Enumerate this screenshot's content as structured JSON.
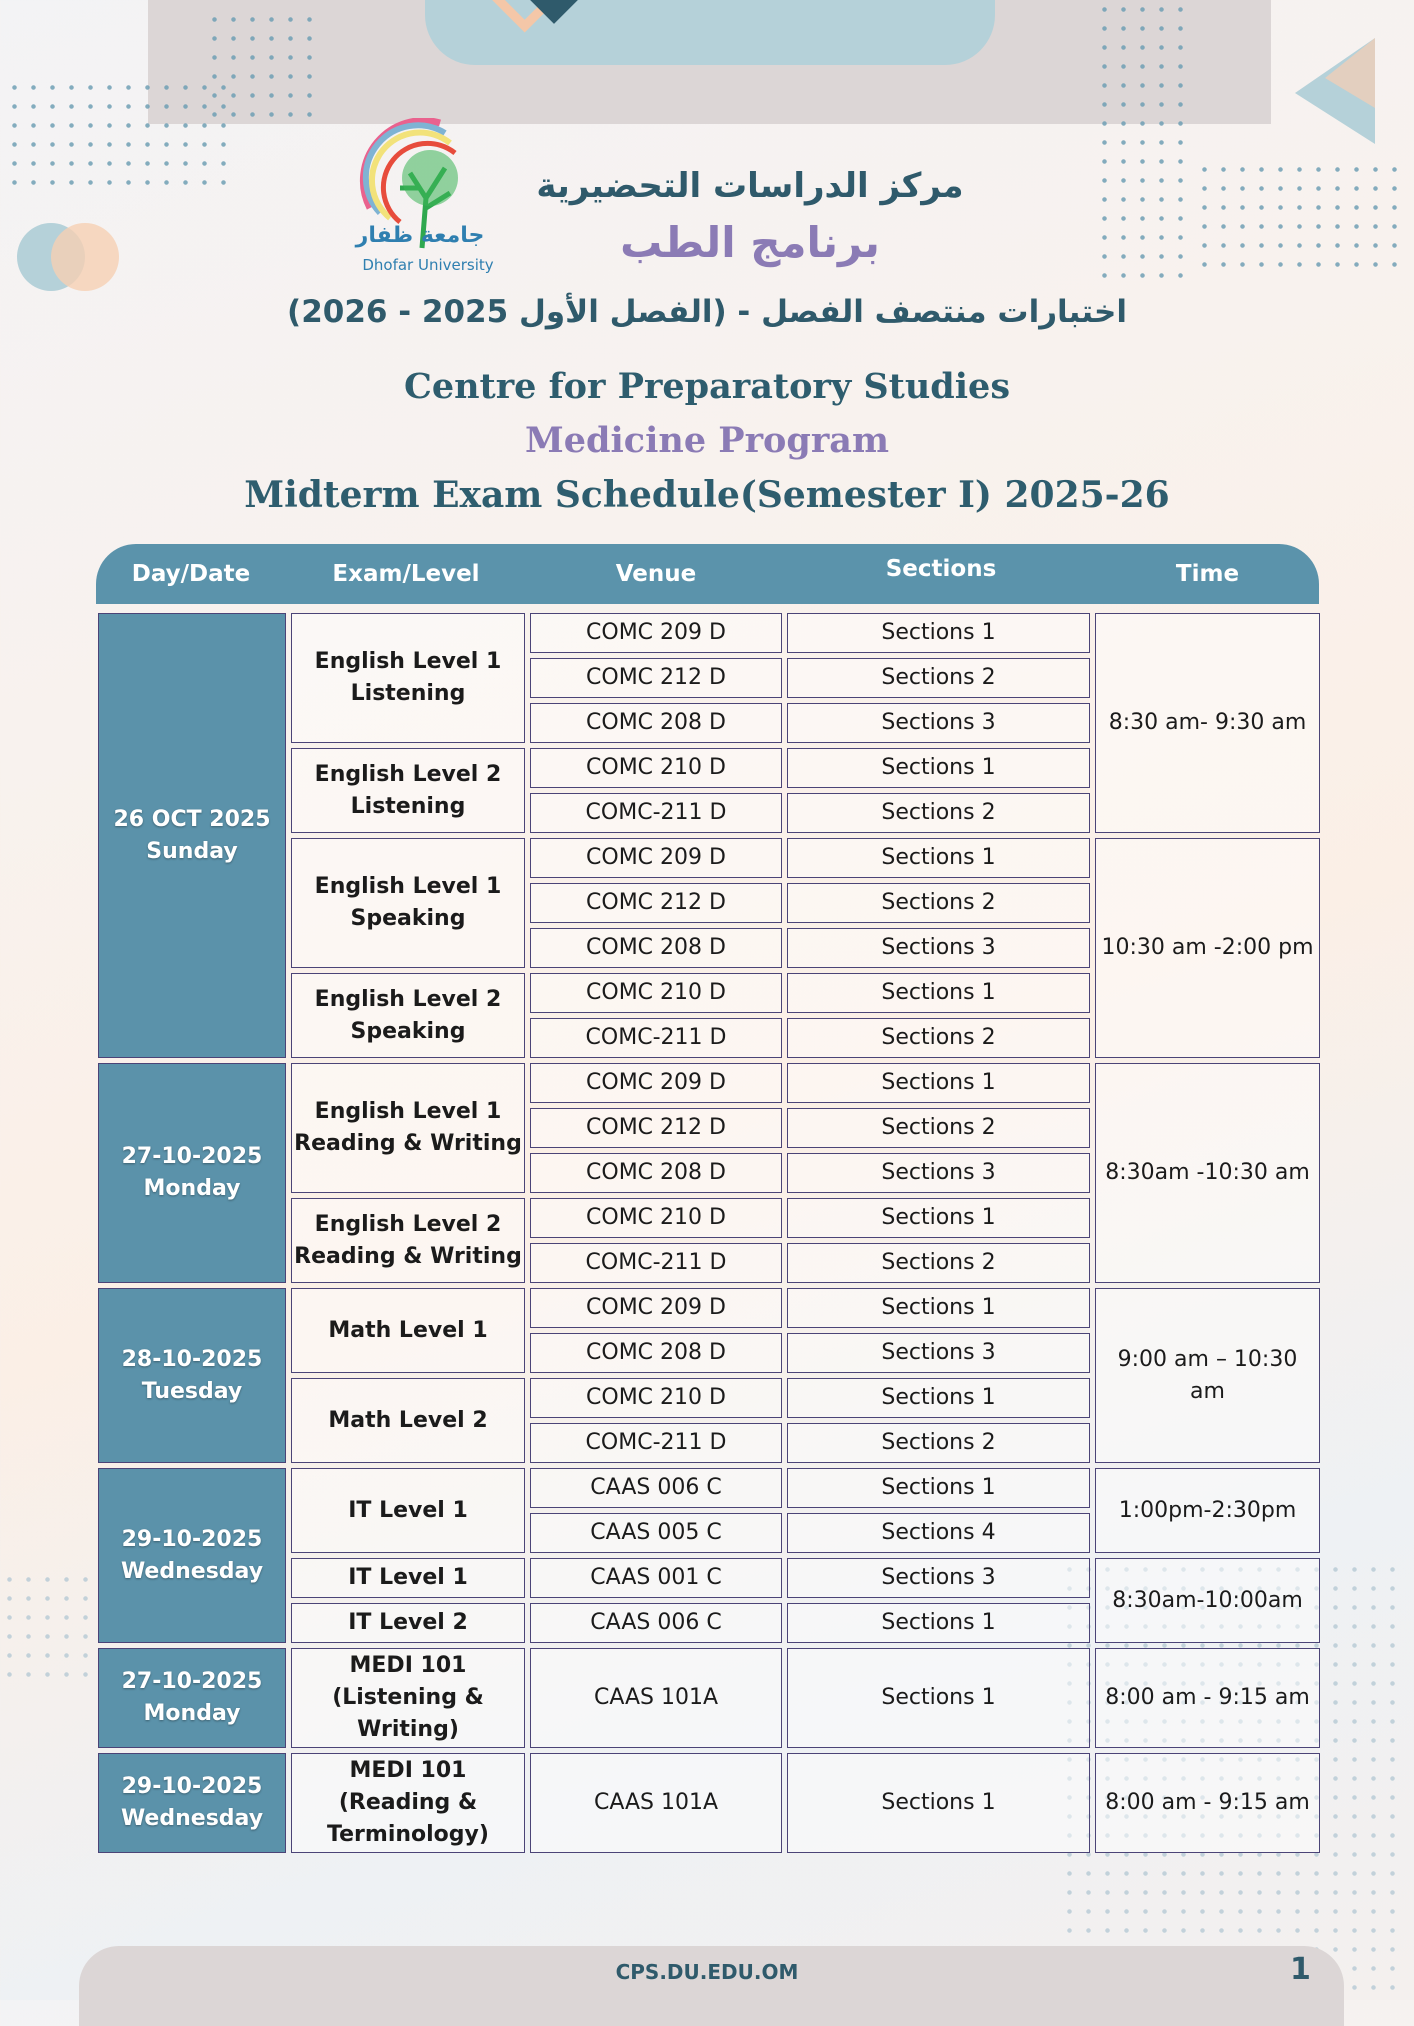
{
  "logo": {
    "arabic": "جامعة ظفار",
    "english": "Dhofar University"
  },
  "header": {
    "arabic_center": "مركز الدراسات التحضيرية",
    "arabic_program": "برنامج الطب",
    "arabic_title": "اختبارات منتصف الفصل - (الفصل الأول 2025 - 2026)",
    "centre": "Centre for Preparatory Studies",
    "program": "Medicine Program",
    "title": "Midterm Exam Schedule(Semester I)  2025-26"
  },
  "table": {
    "columns": [
      "Day/Date",
      "Exam/Level",
      "Venue",
      "Sections",
      "Time"
    ],
    "days": [
      {
        "date": "26 OCT 2025",
        "weekday": "Sunday",
        "exams": [
          {
            "name": "English Level 1 Listening",
            "rows": [
              {
                "venue": "COMC 209 D",
                "section": "Sections 1"
              },
              {
                "venue": "COMC 212 D",
                "section": "Sections 2"
              },
              {
                "venue": "COMC 208 D",
                "section": "Sections 3"
              }
            ],
            "time": "8:30 am- 9:30 am",
            "time_span": 5
          },
          {
            "name": "English Level 2 Listening",
            "rows": [
              {
                "venue": "COMC 210 D",
                "section": "Sections 1"
              },
              {
                "venue": "COMC-211 D",
                "section": "Sections 2"
              }
            ]
          },
          {
            "name": "English Level 1 Speaking",
            "rows": [
              {
                "venue": "COMC 209 D",
                "section": "Sections 1"
              },
              {
                "venue": "COMC 212 D",
                "section": "Sections 2"
              },
              {
                "venue": "COMC 208 D",
                "section": "Sections 3"
              }
            ],
            "time": "10:30 am -2:00 pm",
            "time_span": 5
          },
          {
            "name": "English Level 2 Speaking",
            "rows": [
              {
                "venue": "COMC 210 D",
                "section": "Sections 1"
              },
              {
                "venue": "COMC-211 D",
                "section": "Sections 2"
              }
            ]
          }
        ]
      },
      {
        "date": "27-10-2025",
        "weekday": "Monday",
        "exams": [
          {
            "name": "English Level 1 Reading & Writing",
            "rows": [
              {
                "venue": "COMC 209 D",
                "section": "Sections 1"
              },
              {
                "venue": "COMC 212 D",
                "section": "Sections 2"
              },
              {
                "venue": "COMC 208 D",
                "section": "Sections 3"
              }
            ],
            "time": "8:30am -10:30 am",
            "time_span": 5
          },
          {
            "name": "English Level 2 Reading & Writing",
            "rows": [
              {
                "venue": "COMC 210 D",
                "section": "Sections 1"
              },
              {
                "venue": "COMC-211 D",
                "section": "Sections 2"
              }
            ]
          }
        ]
      },
      {
        "date": "28-10-2025",
        "weekday": "Tuesday",
        "exams": [
          {
            "name": "Math Level 1",
            "rows": [
              {
                "venue": "COMC 209 D",
                "section": "Sections 1"
              },
              {
                "venue": "COMC 208 D",
                "section": "Sections 3"
              }
            ],
            "time": "9:00 am – 10:30 am",
            "time_span": 4
          },
          {
            "name": "Math Level 2",
            "rows": [
              {
                "venue": "COMC 210 D",
                "section": "Sections 1"
              },
              {
                "venue": "COMC-211 D",
                "section": "Sections 2"
              }
            ]
          }
        ]
      },
      {
        "date": "29-10-2025",
        "weekday": "Wednesday",
        "exams": [
          {
            "name": "IT Level 1",
            "rows": [
              {
                "venue": "CAAS 006 C",
                "section": "Sections 1"
              },
              {
                "venue": "CAAS 005 C",
                "section": "Sections 4"
              }
            ],
            "time": "1:00pm-2:30pm",
            "time_span": 2
          },
          {
            "name": "IT Level 1",
            "rows": [
              {
                "venue": "CAAS 001 C",
                "section": "Sections 3"
              }
            ],
            "time": "8:30am-10:00am",
            "time_span": 2
          },
          {
            "name": "IT Level 2",
            "rows": [
              {
                "venue": "CAAS 006 C",
                "section": "Sections 1"
              }
            ]
          }
        ]
      },
      {
        "date": "27-10-2025",
        "weekday": "Monday",
        "exams": [
          {
            "name": "MEDI 101 (Listening & Writing)",
            "rows": [
              {
                "venue": "CAAS 101A",
                "section": "Sections 1"
              }
            ],
            "time": "8:00 am - 9:15 am",
            "time_span": 1
          }
        ]
      },
      {
        "date": "29-10-2025",
        "weekday": "Wednesday",
        "exams": [
          {
            "name": "MEDI 101 (Reading & Terminology)",
            "rows": [
              {
                "venue": "CAAS 101A",
                "section": "Sections 1"
              }
            ],
            "time": "8:00 am - 9:15 am",
            "time_span": 1
          }
        ]
      }
    ]
  },
  "footer": {
    "url": "CPS.DU.EDU.OM",
    "page": "1"
  },
  "colors": {
    "header": "#5b93ab",
    "day_cell": "#5b92aa",
    "accent_purple": "#8b7bb5",
    "title_teal": "#2e5d6e",
    "cell_border": "#4b4477"
  }
}
